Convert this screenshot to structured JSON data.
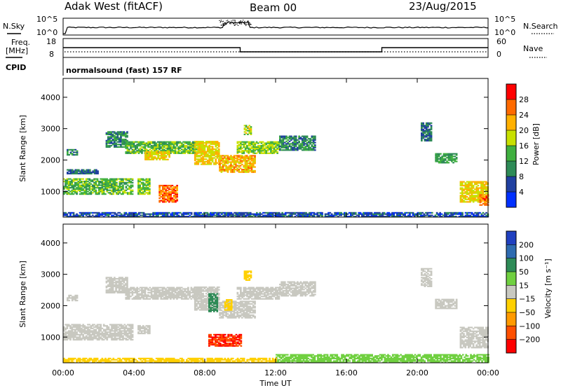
{
  "header": {
    "radar": "Adak West (fitACF)",
    "beam": "Beam 00",
    "date": "23/Aug/2015"
  },
  "top_panels": {
    "nsky_label": "N.Sky",
    "nsky_ticks": [
      "10^5",
      "10^0"
    ],
    "nsearch_label": "N.Search",
    "nsearch_ticks": [
      "10^5",
      "10^0"
    ],
    "freq_label_1": "Freq.",
    "freq_label_2": "[MHz]",
    "freq_ticks": [
      "18",
      "8"
    ],
    "nave_label": "Nave",
    "nave_ticks": [
      "60",
      "0"
    ],
    "cpid_label": "CPID",
    "cpid_text": "normalsound (fast) 157 RF"
  },
  "chart_data": [
    {
      "type": "heatmap",
      "name": "power",
      "ylabel": "Slant Range [km]",
      "ylim": [
        180,
        4600
      ],
      "yticks": [
        1000,
        2000,
        3000,
        4000
      ],
      "xlim": [
        0,
        24
      ],
      "colorbar": {
        "label": "Power [dB]",
        "ticks": [
          "28",
          "24",
          "20",
          "16",
          "12",
          "8",
          "4"
        ],
        "colors": [
          "#ff0000",
          "#ff6a00",
          "#ffb000",
          "#c8e000",
          "#40b040",
          "#2e8b57",
          "#2040a0",
          "#0030ff"
        ]
      },
      "bands": [
        {
          "t0": 0.0,
          "t1": 3.9,
          "r0": 900,
          "r1": 1400,
          "val": 14
        },
        {
          "t0": 0.2,
          "t1": 2.0,
          "r0": 1550,
          "r1": 1700,
          "val": 8
        },
        {
          "t0": 0.2,
          "t1": 0.8,
          "r0": 2150,
          "r1": 2350,
          "val": 10
        },
        {
          "t0": 2.4,
          "t1": 3.6,
          "r0": 2400,
          "r1": 2900,
          "val": 10
        },
        {
          "t0": 3.5,
          "t1": 7.8,
          "r0": 2200,
          "r1": 2600,
          "val": 14
        },
        {
          "t0": 4.6,
          "t1": 6.0,
          "r0": 2000,
          "r1": 2250,
          "val": 20
        },
        {
          "t0": 4.2,
          "t1": 4.9,
          "r0": 900,
          "r1": 1400,
          "val": 16
        },
        {
          "t0": 5.4,
          "t1": 6.4,
          "r0": 650,
          "r1": 1200,
          "val": 26
        },
        {
          "t0": 7.4,
          "t1": 8.8,
          "r0": 1850,
          "r1": 2600,
          "val": 20
        },
        {
          "t0": 8.8,
          "t1": 10.8,
          "r0": 1600,
          "r1": 2150,
          "val": 22
        },
        {
          "t0": 9.8,
          "t1": 12.2,
          "r0": 2200,
          "r1": 2600,
          "val": 16
        },
        {
          "t0": 12.2,
          "t1": 14.2,
          "r0": 2300,
          "r1": 2750,
          "val": 10
        },
        {
          "t0": 10.2,
          "t1": 10.6,
          "r0": 2800,
          "r1": 3100,
          "val": 18
        },
        {
          "t0": 20.2,
          "t1": 20.8,
          "r0": 2600,
          "r1": 3200,
          "val": 8
        },
        {
          "t0": 21.0,
          "t1": 22.2,
          "r0": 1900,
          "r1": 2200,
          "val": 12
        },
        {
          "t0": 22.4,
          "t1": 24.0,
          "r0": 650,
          "r1": 1300,
          "val": 20
        },
        {
          "t0": 23.5,
          "t1": 24.0,
          "r0": 550,
          "r1": 900,
          "val": 26
        },
        {
          "t0": 0.0,
          "t1": 24.0,
          "r0": 180,
          "r1": 340,
          "val": 6
        }
      ]
    },
    {
      "type": "heatmap",
      "name": "velocity",
      "ylabel": "Slant Range [km]",
      "xlabel": "Time UT",
      "ylim": [
        180,
        4600
      ],
      "yticks": [
        1000,
        2000,
        3000,
        4000
      ],
      "xlim": [
        0,
        24
      ],
      "xticks": [
        "00:00",
        "04:00",
        "08:00",
        "12:00",
        "16:00",
        "20:00",
        "00:00"
      ],
      "colorbar": {
        "label": "Velocity [m s⁻¹]",
        "ticks": [
          "200",
          "100",
          "50",
          "15",
          "−15",
          "−50",
          "−100",
          "−200"
        ],
        "colors": [
          "#2040c0",
          "#2e6bb0",
          "#2e8b57",
          "#70d040",
          "#c8c8c0",
          "#ffd000",
          "#ff9a00",
          "#ff5000",
          "#ff0000"
        ]
      },
      "bands": [
        {
          "t0": 0.0,
          "t1": 3.9,
          "r0": 900,
          "r1": 1400,
          "val": 0
        },
        {
          "t0": 0.2,
          "t1": 0.8,
          "r0": 2150,
          "r1": 2350,
          "val": 0
        },
        {
          "t0": 2.4,
          "t1": 3.6,
          "r0": 2400,
          "r1": 2900,
          "val": 0
        },
        {
          "t0": 3.5,
          "t1": 7.8,
          "r0": 2200,
          "r1": 2600,
          "val": 0
        },
        {
          "t0": 4.2,
          "t1": 4.9,
          "r0": 1100,
          "r1": 1350,
          "val": 0
        },
        {
          "t0": 7.4,
          "t1": 8.8,
          "r0": 1850,
          "r1": 2600,
          "val": 0
        },
        {
          "t0": 8.2,
          "t1": 8.7,
          "r0": 1800,
          "r1": 2400,
          "val": 60
        },
        {
          "t0": 8.8,
          "t1": 10.8,
          "r0": 1600,
          "r1": 2150,
          "val": 0
        },
        {
          "t0": 9.1,
          "t1": 9.5,
          "r0": 1850,
          "r1": 2200,
          "val": -40
        },
        {
          "t0": 9.8,
          "t1": 12.2,
          "r0": 2200,
          "r1": 2600,
          "val": 0
        },
        {
          "t0": 12.2,
          "t1": 14.2,
          "r0": 2300,
          "r1": 2750,
          "val": 0
        },
        {
          "t0": 10.2,
          "t1": 10.6,
          "r0": 2800,
          "r1": 3100,
          "val": -40
        },
        {
          "t0": 8.2,
          "t1": 10.0,
          "r0": 700,
          "r1": 1100,
          "val": -200
        },
        {
          "t0": 20.2,
          "t1": 20.8,
          "r0": 2600,
          "r1": 3200,
          "val": 0
        },
        {
          "t0": 21.0,
          "t1": 22.2,
          "r0": 1900,
          "r1": 2200,
          "val": 0
        },
        {
          "t0": 22.4,
          "t1": 24.0,
          "r0": 650,
          "r1": 1300,
          "val": 0
        },
        {
          "t0": 12.0,
          "t1": 24.0,
          "r0": 180,
          "r1": 450,
          "val": 40
        },
        {
          "t0": 0.0,
          "t1": 12.0,
          "r0": 180,
          "r1": 330,
          "val": -40
        }
      ]
    }
  ]
}
